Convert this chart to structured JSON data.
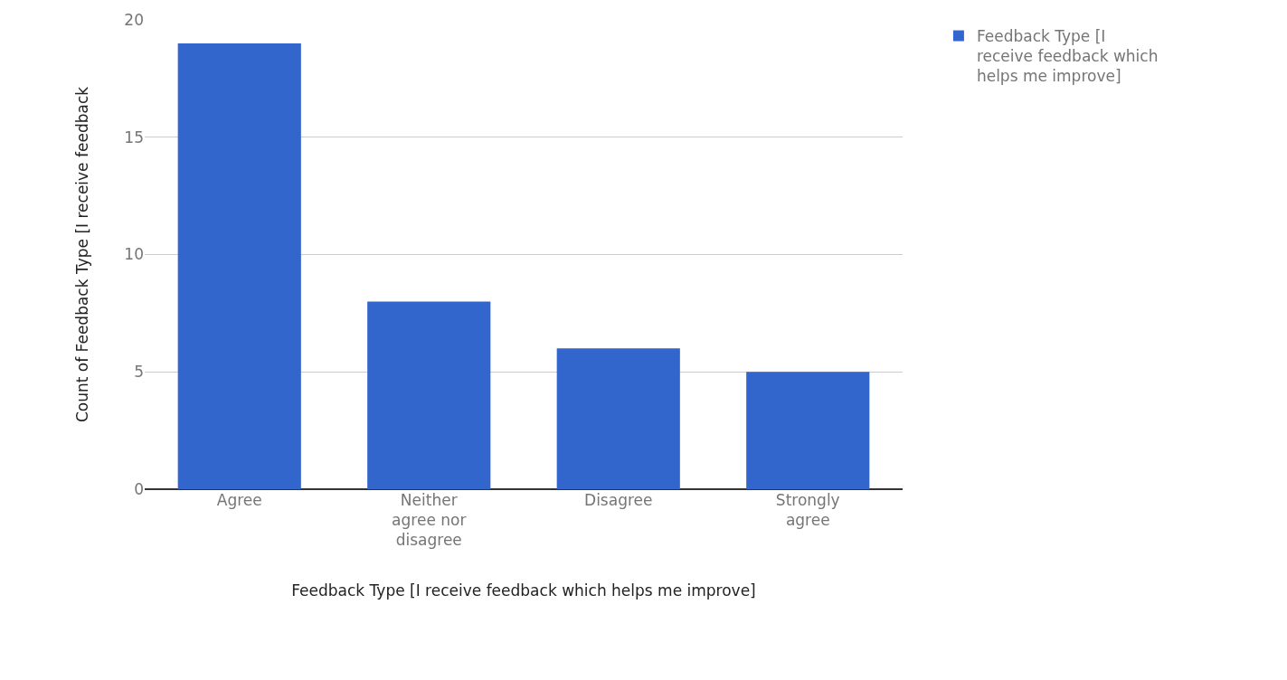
{
  "chart_data": {
    "type": "bar",
    "xlabel": "Feedback Type [I receive feedback which helps me improve]",
    "ylabel": "Count of Feedback Type [I receive feedback",
    "categories": [
      "Agree",
      "Neither agree nor disagree",
      "Disagree",
      "Strongly agree"
    ],
    "series": [
      {
        "name": "Feedback Type [I receive feedback which helps me improve]",
        "color": "#3366cc",
        "values": [
          19,
          8,
          6,
          5
        ]
      }
    ],
    "ylim": [
      0,
      20
    ],
    "yticks": [
      0,
      5,
      10,
      15,
      20
    ],
    "grid": "y",
    "legend": "top right"
  }
}
